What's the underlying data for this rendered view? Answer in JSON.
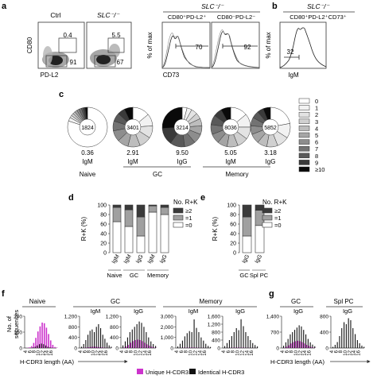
{
  "panels": {
    "a": {
      "letter": "a",
      "flow": {
        "ctrl_title": "Ctrl",
        "slc_title": "SLC⁻/⁻",
        "y_label": "CD80",
        "x_label": "PD-L2",
        "ctrl_upper_gate": "0.4",
        "ctrl_lower_gate": "91",
        "slc_upper_gate": "5.5",
        "slc_lower_gate": "67"
      },
      "hist": {
        "group_title": "SLC⁻/⁻",
        "left_title": "CD80⁺PD-L2⁺",
        "right_title": "CD80⁻PD-L2⁻",
        "y_label": "% of max",
        "x_label": "CD73",
        "left_gate": "70",
        "right_gate": "92"
      }
    },
    "b": {
      "letter": "b",
      "group_title": "SLC⁻/⁻",
      "title": "CD80⁺PD-L2⁺CD73⁺",
      "y_label": "% of max",
      "x_label": "IgM",
      "gate": "32"
    },
    "c": {
      "letter": "c",
      "pies": [
        {
          "center": "1824",
          "mean": "0.36",
          "isotype": "IgM",
          "dist": [
            80,
            3,
            2,
            2,
            2,
            2,
            2,
            2,
            1.5,
            1.5,
            2
          ]
        },
        {
          "center": "3401",
          "mean": "2.91",
          "isotype": "IgM",
          "dist": [
            14,
            10,
            10,
            10,
            10,
            9,
            9,
            8,
            7,
            6,
            7
          ]
        },
        {
          "center": "3214",
          "mean": "9.50",
          "isotype": "IgG",
          "dist": [
            4,
            4,
            5,
            5,
            6,
            7,
            8,
            9,
            12,
            14,
            26
          ]
        },
        {
          "center": "8036",
          "mean": "5.05",
          "isotype": "IgM",
          "dist": [
            14,
            11,
            10,
            9,
            9,
            8,
            8,
            8,
            8,
            7,
            8
          ]
        },
        {
          "center": "5852",
          "mean": "3.18",
          "isotype": "IgG",
          "dist": [
            22,
            12,
            10,
            9,
            8,
            8,
            7,
            7,
            6,
            5,
            6
          ]
        }
      ],
      "groups": [
        "Naive",
        "GC",
        "Memory"
      ],
      "legend": [
        "0",
        "1",
        "2",
        "3",
        "4",
        "5",
        "6",
        "7",
        "8",
        "9",
        "≥10"
      ],
      "legend_colors": [
        "#ffffff",
        "#f2f2f2",
        "#e3e3e3",
        "#d0d0d0",
        "#bdbdbd",
        "#a5a5a5",
        "#8d8d8d",
        "#737373",
        "#595959",
        "#3a3a3a",
        "#0a0a0a"
      ]
    },
    "d": {
      "letter": "d",
      "legend_title": "No. R+K",
      "legend": [
        "≥2",
        "=1",
        "=0"
      ],
      "y_label": "R+K (%)",
      "y_ticks": [
        "0",
        "20",
        "40",
        "60",
        "80",
        "100"
      ],
      "groups": [
        "Naive",
        "GC",
        "Memory"
      ]
    },
    "e": {
      "letter": "e",
      "legend_title": "No. R+K",
      "legend": [
        "≥2",
        "=1",
        "=0"
      ],
      "y_label": "R+K (%)",
      "y_ticks": [
        "0",
        "20",
        "40",
        "60",
        "80",
        "100"
      ],
      "groups": [
        "GC",
        "Spl PC"
      ]
    },
    "f": {
      "letter": "f",
      "y_label_lines": [
        "No. of",
        "sequences"
      ],
      "x_label": "H-CDR3 length (AA)",
      "groups": [
        "Naive",
        "GC",
        "Memory"
      ],
      "x_ticks": [
        "4",
        "6",
        "8",
        "10",
        "12",
        "14",
        "16"
      ]
    },
    "g": {
      "letter": "g",
      "groups": [
        "GC",
        "Spl PC"
      ],
      "x_label": "H-CDR3 length (AA)",
      "x_ticks": [
        "4",
        "6",
        "8",
        "10",
        "12",
        "14",
        "16"
      ]
    }
  },
  "legend_f": {
    "unique": "Unique H-CDR3",
    "identical": "Identical H-CDR3",
    "unique_color": "#cc33cc",
    "identical_color": "#111111"
  },
  "chart_data": [
    {
      "type": "bar",
      "panel": "d",
      "categories": [
        "IgM",
        "IgM",
        "IgG",
        "IgM",
        "IgG"
      ],
      "groups": [
        "Naive",
        "GC",
        "GC",
        "Memory",
        "Memory"
      ],
      "y_ticks": [
        "0",
        "20",
        "40",
        "60",
        "80",
        "100"
      ],
      "ylabel": "R+K (%)",
      "ylim": [
        0,
        100
      ],
      "series": [
        {
          "name": "=0",
          "values": [
            65,
            55,
            35,
            85,
            80
          ]
        },
        {
          "name": "=1",
          "values": [
            30,
            35,
            40,
            13,
            15
          ]
        },
        {
          "name": "≥2",
          "values": [
            5,
            10,
            25,
            2,
            5
          ]
        }
      ]
    },
    {
      "type": "bar",
      "panel": "e",
      "categories": [
        "IgG",
        "IgG"
      ],
      "groups": [
        "GC",
        "Spl PC"
      ],
      "y_ticks": [
        "0",
        "20",
        "40",
        "60",
        "80",
        "100"
      ],
      "ylabel": "R+K (%)",
      "ylim": [
        0,
        100
      ],
      "series": [
        {
          "name": "=0",
          "values": [
            35,
            57
          ]
        },
        {
          "name": "=1",
          "values": [
            40,
            32
          ]
        },
        {
          "name": "≥2",
          "values": [
            25,
            11
          ]
        }
      ]
    },
    {
      "type": "bar",
      "panel": "f",
      "subtitle": "Naive",
      "title": "",
      "x": [
        4,
        5,
        6,
        7,
        8,
        9,
        10,
        11,
        12,
        13,
        14,
        15,
        16,
        17,
        18
      ],
      "ymax": 250,
      "y_ticks": [
        "0",
        "100",
        "200"
      ],
      "series": [
        {
          "name": "Unique H-CDR3",
          "values": [
            2,
            5,
            15,
            40,
            80,
            130,
            170,
            200,
            195,
            160,
            110,
            60,
            25,
            8,
            3
          ]
        },
        {
          "name": "Identical H-CDR3",
          "values": [
            0,
            0,
            2,
            5,
            10,
            20,
            30,
            35,
            30,
            20,
            10,
            5,
            2,
            0,
            0
          ]
        }
      ]
    },
    {
      "type": "bar",
      "panel": "f",
      "group": "GC",
      "title": "IgM",
      "x": [
        4,
        5,
        6,
        7,
        8,
        9,
        10,
        11,
        12,
        13,
        14,
        15,
        16,
        17,
        18
      ],
      "ymax": 1200,
      "y_ticks": [
        "0",
        "400",
        "800",
        "1,200"
      ],
      "series": [
        {
          "name": "Unique H-CDR3",
          "values": [
            5,
            10,
            20,
            30,
            40,
            50,
            50,
            40,
            35,
            25,
            15,
            10,
            5,
            3,
            2
          ]
        },
        {
          "name": "Identical H-CDR3",
          "values": [
            50,
            150,
            300,
            500,
            650,
            700,
            600,
            800,
            900,
            750,
            500,
            350,
            200,
            100,
            50
          ]
        }
      ]
    },
    {
      "type": "bar",
      "panel": "f",
      "group": "GC",
      "title": "IgG",
      "x": [
        4,
        5,
        6,
        7,
        8,
        9,
        10,
        11,
        12,
        13,
        14,
        15,
        16,
        17,
        18
      ],
      "ymax": 1200,
      "y_ticks": [
        "0",
        "400",
        "800",
        "1,200"
      ],
      "series": [
        {
          "name": "Unique H-CDR3",
          "values": [
            20,
            60,
            120,
            200,
            260,
            300,
            320,
            300,
            260,
            200,
            140,
            90,
            50,
            20,
            10
          ]
        },
        {
          "name": "Identical H-CDR3",
          "values": [
            100,
            250,
            400,
            600,
            700,
            800,
            900,
            1000,
            950,
            800,
            600,
            400,
            250,
            150,
            80
          ]
        }
      ]
    },
    {
      "type": "bar",
      "panel": "f",
      "group": "Memory",
      "title": "IgM",
      "x": [
        4,
        5,
        6,
        7,
        8,
        9,
        10,
        11,
        12,
        13,
        14,
        15,
        16,
        17,
        18
      ],
      "ymax": 3000,
      "y_ticks": [
        "0",
        "1,000",
        "2,000",
        "3,000"
      ],
      "series": [
        {
          "name": "Unique H-CDR3",
          "values": [
            5,
            10,
            20,
            30,
            40,
            50,
            50,
            40,
            35,
            25,
            15,
            10,
            5,
            3,
            2
          ]
        },
        {
          "name": "Identical H-CDR3",
          "values": [
            150,
            400,
            700,
            1100,
            1400,
            1600,
            1500,
            2700,
            1900,
            1500,
            1000,
            700,
            400,
            200,
            100
          ]
        }
      ]
    },
    {
      "type": "bar",
      "panel": "f",
      "group": "Memory",
      "title": "IgG",
      "x": [
        4,
        5,
        6,
        7,
        8,
        9,
        10,
        11,
        12,
        13,
        14,
        15,
        16,
        17,
        18
      ],
      "ymax": 1600,
      "y_ticks": [
        "0",
        "400",
        "800",
        "1,200",
        "1,600"
      ],
      "series": [
        {
          "name": "Unique H-CDR3",
          "values": [
            3,
            5,
            10,
            15,
            20,
            25,
            25,
            20,
            15,
            10,
            8,
            5,
            3,
            2,
            1
          ]
        },
        {
          "name": "Identical H-CDR3",
          "values": [
            100,
            250,
            400,
            600,
            800,
            1000,
            900,
            1450,
            1100,
            800,
            600,
            400,
            250,
            150,
            80
          ]
        }
      ]
    },
    {
      "type": "bar",
      "panel": "g",
      "group": "GC",
      "title": "IgG",
      "x": [
        4,
        5,
        6,
        7,
        8,
        9,
        10,
        11,
        12,
        13,
        14,
        15,
        16,
        17,
        18
      ],
      "ymax": 1400,
      "y_ticks": [
        "0",
        "700",
        "1,400"
      ],
      "series": [
        {
          "name": "Unique H-CDR3",
          "values": [
            20,
            60,
            120,
            200,
            260,
            300,
            320,
            300,
            260,
            200,
            140,
            90,
            50,
            20,
            10
          ]
        },
        {
          "name": "Identical H-CDR3",
          "values": [
            100,
            250,
            400,
            600,
            700,
            800,
            900,
            1000,
            950,
            800,
            600,
            400,
            250,
            150,
            80
          ]
        }
      ]
    },
    {
      "type": "bar",
      "panel": "g",
      "group": "Spl PC",
      "title": "IgG",
      "x": [
        4,
        5,
        6,
        7,
        8,
        9,
        10,
        11,
        12,
        13,
        14,
        15,
        16,
        17,
        18
      ],
      "ymax": 800,
      "y_ticks": [
        "0",
        "400",
        "800"
      ],
      "series": [
        {
          "name": "Unique H-CDR3",
          "values": [
            0,
            0,
            0,
            0,
            0,
            0,
            0,
            0,
            0,
            0,
            0,
            0,
            0,
            0,
            0
          ]
        },
        {
          "name": "Identical H-CDR3",
          "values": [
            30,
            80,
            150,
            300,
            500,
            650,
            600,
            750,
            700,
            500,
            350,
            200,
            120,
            60,
            30
          ]
        }
      ]
    }
  ]
}
